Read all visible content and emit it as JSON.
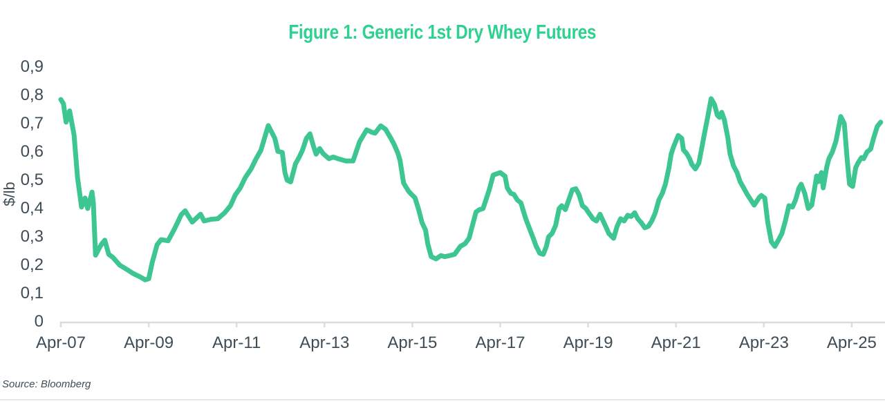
{
  "title": "Figure 1: Generic 1st Dry Whey Futures",
  "source": "Source: Bloomberg",
  "colors": {
    "title_green": "#2DD291",
    "line_green": "#3DC692",
    "axis_text": "#3E4D55",
    "axis_line": "#D9DDDF",
    "divider": "#E4E7E9"
  },
  "chart_data": {
    "type": "line",
    "title": "Figure 1: Generic 1st Dry Whey Futures",
    "xlabel": "",
    "ylabel": "$/lb",
    "ylim": [
      0,
      0.9
    ],
    "xlim_years_after_apr2007": [
      0,
      18.77
    ],
    "grid": false,
    "legend": "none",
    "decimal_separator": ",",
    "y_ticks": [
      {
        "v": 0.9,
        "label": "0,9"
      },
      {
        "v": 0.8,
        "label": "0,8"
      },
      {
        "v": 0.7,
        "label": "0,7"
      },
      {
        "v": 0.6,
        "label": "0,6"
      },
      {
        "v": 0.5,
        "label": "0,5"
      },
      {
        "v": 0.4,
        "label": "0,4"
      },
      {
        "v": 0.3,
        "label": "0,3"
      },
      {
        "v": 0.2,
        "label": "0,2"
      },
      {
        "v": 0.1,
        "label": "0,1"
      },
      {
        "v": 0.0,
        "label": "0"
      }
    ],
    "x_ticks": [
      {
        "t": 0,
        "label": "Apr-07"
      },
      {
        "t": 2,
        "label": "Apr-09"
      },
      {
        "t": 4,
        "label": "Apr-11"
      },
      {
        "t": 6,
        "label": "Apr-13"
      },
      {
        "t": 8,
        "label": "Apr-15"
      },
      {
        "t": 10,
        "label": "Apr-17"
      },
      {
        "t": 12,
        "label": "Apr-19"
      },
      {
        "t": 14,
        "label": "Apr-21"
      },
      {
        "t": 16,
        "label": "Apr-23"
      },
      {
        "t": 18,
        "label": "Apr-25"
      }
    ],
    "series": [
      {
        "name": "Generic 1st Dry Whey Futures ($/lb)",
        "x_unit": "years since Apr-2007",
        "points": [
          [
            0.0,
            0.785
          ],
          [
            0.06,
            0.77
          ],
          [
            0.12,
            0.705
          ],
          [
            0.2,
            0.745
          ],
          [
            0.3,
            0.66
          ],
          [
            0.38,
            0.51
          ],
          [
            0.44,
            0.44
          ],
          [
            0.47,
            0.405
          ],
          [
            0.55,
            0.437
          ],
          [
            0.61,
            0.4
          ],
          [
            0.71,
            0.458
          ],
          [
            0.74,
            0.42
          ],
          [
            0.79,
            0.235
          ],
          [
            0.88,
            0.262
          ],
          [
            0.93,
            0.275
          ],
          [
            1.0,
            0.288
          ],
          [
            1.09,
            0.238
          ],
          [
            1.18,
            0.228
          ],
          [
            1.34,
            0.2
          ],
          [
            1.5,
            0.185
          ],
          [
            1.65,
            0.17
          ],
          [
            1.81,
            0.158
          ],
          [
            1.92,
            0.148
          ],
          [
            2.0,
            0.152
          ],
          [
            2.08,
            0.21
          ],
          [
            2.19,
            0.272
          ],
          [
            2.28,
            0.29
          ],
          [
            2.44,
            0.286
          ],
          [
            2.6,
            0.332
          ],
          [
            2.74,
            0.378
          ],
          [
            2.83,
            0.392
          ],
          [
            2.99,
            0.352
          ],
          [
            3.18,
            0.38
          ],
          [
            3.26,
            0.356
          ],
          [
            3.42,
            0.362
          ],
          [
            3.57,
            0.364
          ],
          [
            3.73,
            0.385
          ],
          [
            3.86,
            0.41
          ],
          [
            3.97,
            0.448
          ],
          [
            4.08,
            0.472
          ],
          [
            4.2,
            0.51
          ],
          [
            4.33,
            0.54
          ],
          [
            4.44,
            0.575
          ],
          [
            4.55,
            0.605
          ],
          [
            4.6,
            0.63
          ],
          [
            4.72,
            0.693
          ],
          [
            4.87,
            0.648
          ],
          [
            4.94,
            0.602
          ],
          [
            5.04,
            0.598
          ],
          [
            5.1,
            0.527
          ],
          [
            5.15,
            0.5
          ],
          [
            5.23,
            0.494
          ],
          [
            5.34,
            0.558
          ],
          [
            5.42,
            0.58
          ],
          [
            5.5,
            0.606
          ],
          [
            5.59,
            0.648
          ],
          [
            5.67,
            0.664
          ],
          [
            5.75,
            0.62
          ],
          [
            5.81,
            0.592
          ],
          [
            5.89,
            0.612
          ],
          [
            5.97,
            0.594
          ],
          [
            6.1,
            0.576
          ],
          [
            6.2,
            0.582
          ],
          [
            6.33,
            0.575
          ],
          [
            6.49,
            0.568
          ],
          [
            6.65,
            0.568
          ],
          [
            6.8,
            0.636
          ],
          [
            6.96,
            0.678
          ],
          [
            7.07,
            0.67
          ],
          [
            7.15,
            0.666
          ],
          [
            7.28,
            0.692
          ],
          [
            7.39,
            0.68
          ],
          [
            7.51,
            0.648
          ],
          [
            7.59,
            0.625
          ],
          [
            7.67,
            0.596
          ],
          [
            7.72,
            0.57
          ],
          [
            7.8,
            0.49
          ],
          [
            7.91,
            0.462
          ],
          [
            7.98,
            0.45
          ],
          [
            8.06,
            0.438
          ],
          [
            8.14,
            0.398
          ],
          [
            8.22,
            0.35
          ],
          [
            8.3,
            0.324
          ],
          [
            8.35,
            0.276
          ],
          [
            8.43,
            0.23
          ],
          [
            8.54,
            0.222
          ],
          [
            8.65,
            0.234
          ],
          [
            8.74,
            0.23
          ],
          [
            8.85,
            0.234
          ],
          [
            8.96,
            0.238
          ],
          [
            9.09,
            0.266
          ],
          [
            9.2,
            0.276
          ],
          [
            9.29,
            0.295
          ],
          [
            9.45,
            0.388
          ],
          [
            9.53,
            0.396
          ],
          [
            9.61,
            0.4
          ],
          [
            9.75,
            0.466
          ],
          [
            9.84,
            0.518
          ],
          [
            10.0,
            0.527
          ],
          [
            10.11,
            0.514
          ],
          [
            10.16,
            0.473
          ],
          [
            10.24,
            0.454
          ],
          [
            10.31,
            0.45
          ],
          [
            10.39,
            0.43
          ],
          [
            10.47,
            0.42
          ],
          [
            10.58,
            0.364
          ],
          [
            10.66,
            0.332
          ],
          [
            10.74,
            0.3
          ],
          [
            10.82,
            0.266
          ],
          [
            10.9,
            0.242
          ],
          [
            10.98,
            0.238
          ],
          [
            11.05,
            0.266
          ],
          [
            11.1,
            0.3
          ],
          [
            11.18,
            0.312
          ],
          [
            11.26,
            0.34
          ],
          [
            11.34,
            0.4
          ],
          [
            11.4,
            0.41
          ],
          [
            11.48,
            0.396
          ],
          [
            11.56,
            0.43
          ],
          [
            11.64,
            0.466
          ],
          [
            11.72,
            0.47
          ],
          [
            11.79,
            0.45
          ],
          [
            11.87,
            0.41
          ],
          [
            11.95,
            0.4
          ],
          [
            12.0,
            0.388
          ],
          [
            12.11,
            0.364
          ],
          [
            12.19,
            0.356
          ],
          [
            12.27,
            0.38
          ],
          [
            12.42,
            0.33
          ],
          [
            12.47,
            0.312
          ],
          [
            12.58,
            0.295
          ],
          [
            12.66,
            0.337
          ],
          [
            12.74,
            0.364
          ],
          [
            12.82,
            0.356
          ],
          [
            12.9,
            0.376
          ],
          [
            12.98,
            0.372
          ],
          [
            13.06,
            0.385
          ],
          [
            13.13,
            0.364
          ],
          [
            13.21,
            0.35
          ],
          [
            13.29,
            0.332
          ],
          [
            13.37,
            0.337
          ],
          [
            13.45,
            0.356
          ],
          [
            13.53,
            0.385
          ],
          [
            13.61,
            0.43
          ],
          [
            13.69,
            0.454
          ],
          [
            13.76,
            0.486
          ],
          [
            13.84,
            0.544
          ],
          [
            13.89,
            0.592
          ],
          [
            13.94,
            0.616
          ],
          [
            14.05,
            0.658
          ],
          [
            14.13,
            0.648
          ],
          [
            14.17,
            0.607
          ],
          [
            14.24,
            0.595
          ],
          [
            14.31,
            0.576
          ],
          [
            14.36,
            0.556
          ],
          [
            14.44,
            0.54
          ],
          [
            14.52,
            0.56
          ],
          [
            14.57,
            0.6
          ],
          [
            14.65,
            0.666
          ],
          [
            14.72,
            0.722
          ],
          [
            14.8,
            0.788
          ],
          [
            14.88,
            0.766
          ],
          [
            14.94,
            0.73
          ],
          [
            14.99,
            0.722
          ],
          [
            15.04,
            0.74
          ],
          [
            15.1,
            0.714
          ],
          [
            15.18,
            0.65
          ],
          [
            15.23,
            0.593
          ],
          [
            15.31,
            0.55
          ],
          [
            15.39,
            0.527
          ],
          [
            15.46,
            0.495
          ],
          [
            15.54,
            0.473
          ],
          [
            15.62,
            0.45
          ],
          [
            15.78,
            0.412
          ],
          [
            15.9,
            0.44
          ],
          [
            15.94,
            0.446
          ],
          [
            16.02,
            0.437
          ],
          [
            16.09,
            0.35
          ],
          [
            16.17,
            0.283
          ],
          [
            16.25,
            0.266
          ],
          [
            16.33,
            0.288
          ],
          [
            16.41,
            0.312
          ],
          [
            16.49,
            0.356
          ],
          [
            16.57,
            0.41
          ],
          [
            16.65,
            0.405
          ],
          [
            16.72,
            0.43
          ],
          [
            16.8,
            0.473
          ],
          [
            16.85,
            0.486
          ],
          [
            16.93,
            0.454
          ],
          [
            17.01,
            0.4
          ],
          [
            17.09,
            0.412
          ],
          [
            17.17,
            0.486
          ],
          [
            17.2,
            0.515
          ],
          [
            17.24,
            0.495
          ],
          [
            17.31,
            0.527
          ],
          [
            17.35,
            0.473
          ],
          [
            17.43,
            0.546
          ],
          [
            17.48,
            0.576
          ],
          [
            17.56,
            0.6
          ],
          [
            17.64,
            0.637
          ],
          [
            17.75,
            0.725
          ],
          [
            17.83,
            0.7
          ],
          [
            17.9,
            0.568
          ],
          [
            17.95,
            0.486
          ],
          [
            18.02,
            0.478
          ],
          [
            18.09,
            0.544
          ],
          [
            18.14,
            0.56
          ],
          [
            18.22,
            0.58
          ],
          [
            18.27,
            0.576
          ],
          [
            18.35,
            0.6
          ],
          [
            18.43,
            0.61
          ],
          [
            18.5,
            0.65
          ],
          [
            18.58,
            0.69
          ],
          [
            18.66,
            0.705
          ]
        ]
      }
    ]
  }
}
